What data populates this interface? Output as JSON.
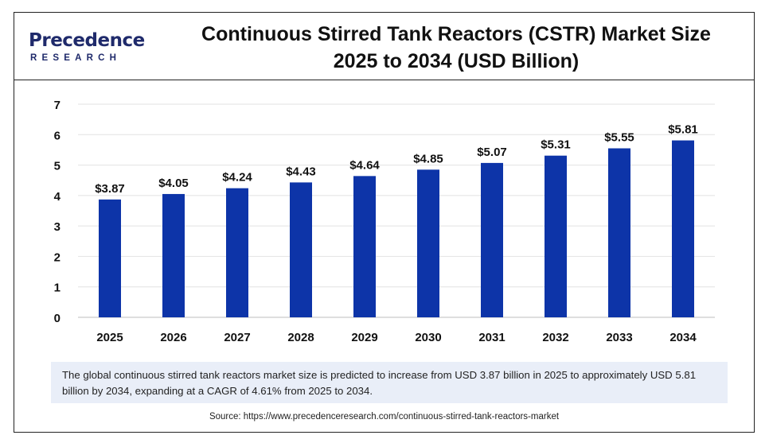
{
  "header": {
    "logo_main": "Precedence",
    "logo_sub": "RESEARCH",
    "title_line1": "Continuous Stirred Tank Reactors (CSTR) Market Size",
    "title_line2": "2025 to 2034 (USD Billion)"
  },
  "chart_data": {
    "type": "bar",
    "title": "Continuous Stirred Tank Reactors (CSTR) Market Size 2025 to 2034 (USD Billion)",
    "categories": [
      "2025",
      "2026",
      "2027",
      "2028",
      "2029",
      "2030",
      "2031",
      "2032",
      "2033",
      "2034"
    ],
    "values": [
      3.87,
      4.05,
      4.24,
      4.43,
      4.64,
      4.85,
      5.07,
      5.31,
      5.55,
      5.81
    ],
    "value_labels": [
      "$3.87",
      "$4.05",
      "$4.24",
      "$4.43",
      "$4.64",
      "$4.85",
      "$5.07",
      "$5.31",
      "$5.55",
      "$5.81"
    ],
    "yticks": [
      "0",
      "1",
      "2",
      "3",
      "4",
      "5",
      "6",
      "7"
    ],
    "ylim": [
      0,
      7
    ],
    "grid": true,
    "legend": "none",
    "bar_color": "#0d34a8"
  },
  "note": "The global continuous stirred tank reactors market size is predicted to increase from USD 3.87 billion in 2025 to approximately USD 5.81 billion by 2034, expanding at a CAGR of 4.61% from 2025 to 2034.",
  "source": "Source: https://www.precedenceresearch.com/continuous-stirred-tank-reactors-market"
}
